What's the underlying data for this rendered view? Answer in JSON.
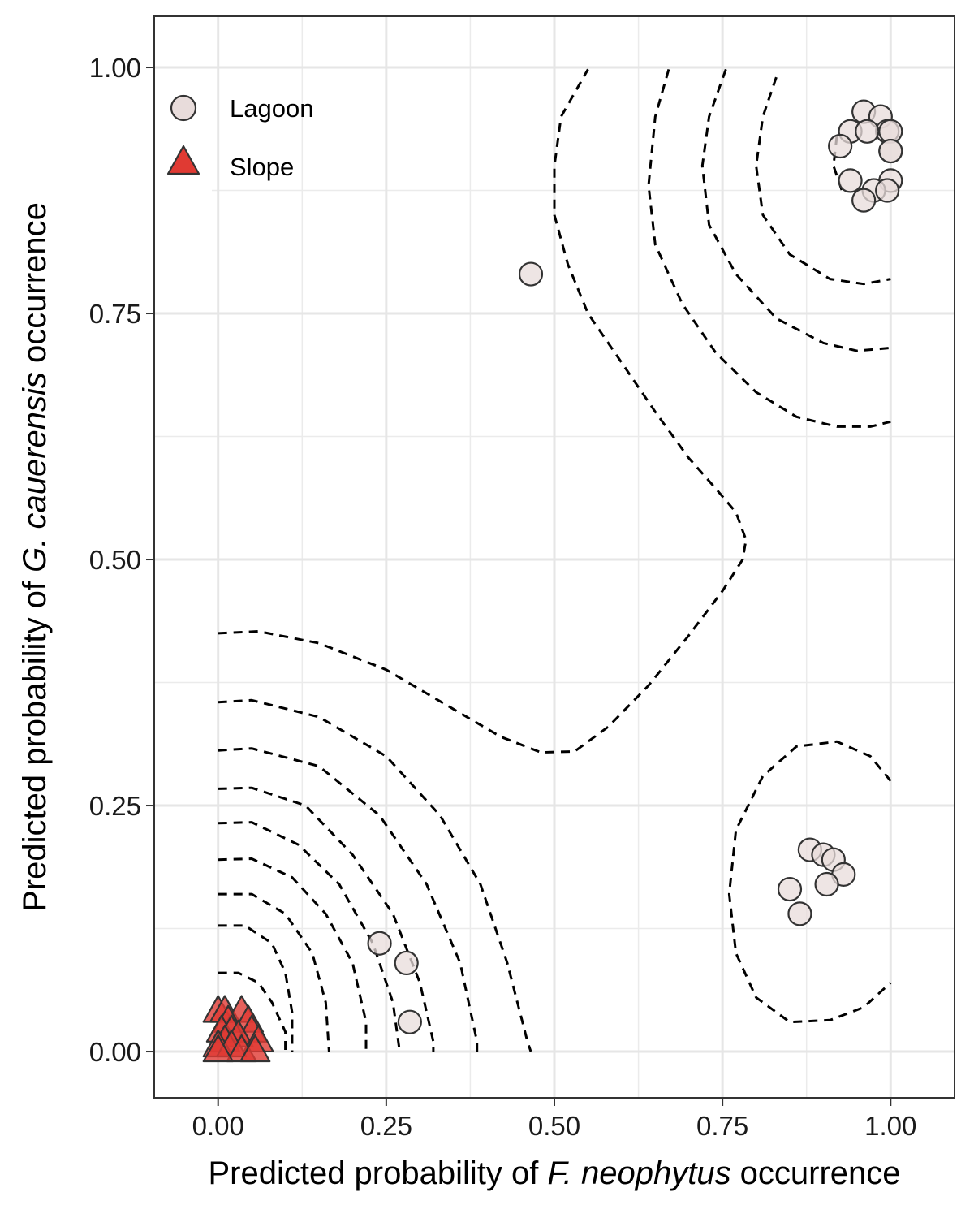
{
  "chart_data": {
    "type": "scatter",
    "xlabel": {
      "prefix": "Predicted probability of ",
      "italic": "F. neophytus",
      "suffix": " occurrence"
    },
    "ylabel": {
      "prefix": "Predicted probability of ",
      "italic": "G. cauerensis",
      "suffix": " occurrence"
    },
    "xlim": [
      -0.095,
      1.095
    ],
    "ylim": [
      -0.047,
      1.052
    ],
    "x_ticks": [
      0.0,
      0.25,
      0.5,
      0.75,
      1.0
    ],
    "x_tick_labels": [
      "0.00",
      "0.25",
      "0.50",
      "0.75",
      "1.00"
    ],
    "y_ticks": [
      0.0,
      0.25,
      0.5,
      0.75,
      1.0
    ],
    "y_tick_labels": [
      "0.00",
      "0.25",
      "0.50",
      "0.75",
      "1.00"
    ],
    "x_minor": [
      0.125,
      0.375,
      0.625,
      0.875
    ],
    "y_minor": [
      0.125,
      0.375,
      0.625,
      0.875
    ],
    "grid": true,
    "legend": {
      "position": "top-left",
      "items": [
        {
          "label": "Lagoon",
          "shape": "circle",
          "fill": "#e8dcdb",
          "stroke": "#333333"
        },
        {
          "label": "Slope",
          "shape": "triangle",
          "fill": "#e03a33",
          "stroke": "#333333"
        }
      ]
    },
    "series": [
      {
        "name": "Lagoon",
        "shape": "circle",
        "color": "#e8dcdb",
        "points": [
          [
            0.465,
            0.79
          ],
          [
            0.24,
            0.11
          ],
          [
            0.28,
            0.09
          ],
          [
            0.285,
            0.03
          ],
          [
            0.96,
            0.955
          ],
          [
            0.985,
            0.95
          ],
          [
            0.995,
            0.935
          ],
          [
            0.94,
            0.935
          ],
          [
            0.965,
            0.935
          ],
          [
            1.0,
            0.935
          ],
          [
            0.925,
            0.92
          ],
          [
            1.0,
            0.915
          ],
          [
            1.0,
            0.915
          ],
          [
            0.94,
            0.885
          ],
          [
            1.0,
            0.885
          ],
          [
            0.975,
            0.875
          ],
          [
            0.995,
            0.875
          ],
          [
            0.96,
            0.865
          ],
          [
            0.88,
            0.205
          ],
          [
            0.9,
            0.2
          ],
          [
            0.915,
            0.195
          ],
          [
            0.93,
            0.18
          ],
          [
            0.905,
            0.17
          ],
          [
            0.85,
            0.165
          ],
          [
            0.865,
            0.14
          ]
        ]
      },
      {
        "name": "Slope",
        "shape": "triangle",
        "color": "#e03a33",
        "points": [
          [
            0.0,
            0.04
          ],
          [
            0.01,
            0.04
          ],
          [
            0.035,
            0.04
          ],
          [
            0.015,
            0.03
          ],
          [
            0.045,
            0.03
          ],
          [
            0.005,
            0.02
          ],
          [
            0.02,
            0.02
          ],
          [
            0.05,
            0.02
          ],
          [
            0.03,
            0.015
          ],
          [
            0.01,
            0.01
          ],
          [
            0.06,
            0.01
          ],
          [
            0.0,
            0.005
          ],
          [
            0.02,
            0.005
          ],
          [
            0.035,
            0.0
          ],
          [
            0.055,
            0.0
          ],
          [
            0.0,
            0.0
          ]
        ]
      }
    ],
    "density_contours": [
      [
        [
          0.0,
          0.425
        ],
        [
          0.06,
          0.427
        ],
        [
          0.15,
          0.415
        ],
        [
          0.25,
          0.388
        ],
        [
          0.35,
          0.348
        ],
        [
          0.42,
          0.32
        ],
        [
          0.48,
          0.304
        ],
        [
          0.53,
          0.305
        ],
        [
          0.58,
          0.33
        ],
        [
          0.64,
          0.372
        ],
        [
          0.7,
          0.423
        ],
        [
          0.75,
          0.468
        ],
        [
          0.78,
          0.5
        ],
        [
          0.785,
          0.52
        ],
        [
          0.77,
          0.548
        ],
        [
          0.74,
          0.572
        ],
        [
          0.7,
          0.603
        ],
        [
          0.65,
          0.65
        ],
        [
          0.6,
          0.7
        ],
        [
          0.55,
          0.75
        ],
        [
          0.52,
          0.8
        ],
        [
          0.5,
          0.85
        ],
        [
          0.5,
          0.9
        ],
        [
          0.51,
          0.95
        ],
        [
          0.55,
          0.998
        ]
      ],
      [
        [
          0.0,
          0.355
        ],
        [
          0.05,
          0.357
        ],
        [
          0.15,
          0.34
        ],
        [
          0.25,
          0.3
        ],
        [
          0.33,
          0.24
        ],
        [
          0.39,
          0.17
        ],
        [
          0.43,
          0.09
        ],
        [
          0.46,
          0.01
        ],
        [
          0.465,
          0.0
        ]
      ],
      [
        [
          0.0,
          0.306
        ],
        [
          0.05,
          0.308
        ],
        [
          0.15,
          0.29
        ],
        [
          0.24,
          0.24
        ],
        [
          0.31,
          0.17
        ],
        [
          0.36,
          0.09
        ],
        [
          0.385,
          0.01
        ],
        [
          0.385,
          0.0
        ]
      ],
      [
        [
          0.0,
          0.267
        ],
        [
          0.05,
          0.268
        ],
        [
          0.13,
          0.25
        ],
        [
          0.2,
          0.2
        ],
        [
          0.26,
          0.14
        ],
        [
          0.3,
          0.07
        ],
        [
          0.32,
          0.01
        ],
        [
          0.32,
          0.0
        ]
      ],
      [
        [
          0.0,
          0.232
        ],
        [
          0.05,
          0.233
        ],
        [
          0.12,
          0.21
        ],
        [
          0.18,
          0.17
        ],
        [
          0.23,
          0.11
        ],
        [
          0.26,
          0.05
        ],
        [
          0.27,
          0.0
        ]
      ],
      [
        [
          0.0,
          0.195
        ],
        [
          0.05,
          0.196
        ],
        [
          0.11,
          0.177
        ],
        [
          0.16,
          0.14
        ],
        [
          0.2,
          0.09
        ],
        [
          0.22,
          0.03
        ],
        [
          0.22,
          0.0
        ]
      ],
      [
        [
          0.0,
          0.16
        ],
        [
          0.05,
          0.16
        ],
        [
          0.1,
          0.14
        ],
        [
          0.14,
          0.1
        ],
        [
          0.16,
          0.05
        ],
        [
          0.165,
          0.0
        ]
      ],
      [
        [
          0.0,
          0.128
        ],
        [
          0.04,
          0.128
        ],
        [
          0.08,
          0.11
        ],
        [
          0.1,
          0.08
        ],
        [
          0.11,
          0.04
        ],
        [
          0.11,
          0.0
        ]
      ],
      [
        [
          0.0,
          0.08
        ],
        [
          0.03,
          0.08
        ],
        [
          0.06,
          0.07
        ],
        [
          0.08,
          0.05
        ],
        [
          0.1,
          0.02
        ],
        [
          0.1,
          0.0
        ]
      ],
      [
        [
          1.0,
          0.275
        ],
        [
          0.97,
          0.3
        ],
        [
          0.92,
          0.315
        ],
        [
          0.86,
          0.31
        ],
        [
          0.81,
          0.28
        ],
        [
          0.77,
          0.225
        ],
        [
          0.76,
          0.16
        ],
        [
          0.77,
          0.1
        ],
        [
          0.8,
          0.055
        ],
        [
          0.85,
          0.03
        ],
        [
          0.91,
          0.032
        ],
        [
          0.96,
          0.045
        ],
        [
          1.0,
          0.07
        ]
      ],
      [
        [
          0.67,
          0.998
        ],
        [
          0.65,
          0.95
        ],
        [
          0.64,
          0.88
        ],
        [
          0.65,
          0.82
        ],
        [
          0.69,
          0.76
        ],
        [
          0.74,
          0.71
        ],
        [
          0.8,
          0.67
        ],
        [
          0.86,
          0.645
        ],
        [
          0.92,
          0.635
        ],
        [
          0.97,
          0.635
        ],
        [
          1.0,
          0.64
        ]
      ],
      [
        [
          0.755,
          0.998
        ],
        [
          0.73,
          0.95
        ],
        [
          0.72,
          0.9
        ],
        [
          0.73,
          0.84
        ],
        [
          0.77,
          0.79
        ],
        [
          0.83,
          0.745
        ],
        [
          0.9,
          0.72
        ],
        [
          0.95,
          0.712
        ],
        [
          1.0,
          0.715
        ]
      ],
      [
        [
          0.83,
          0.99
        ],
        [
          0.81,
          0.95
        ],
        [
          0.8,
          0.9
        ],
        [
          0.81,
          0.85
        ],
        [
          0.85,
          0.81
        ],
        [
          0.91,
          0.785
        ],
        [
          0.96,
          0.78
        ],
        [
          1.0,
          0.785
        ]
      ],
      [
        [
          0.92,
          0.93
        ],
        [
          0.915,
          0.9
        ],
        [
          0.93,
          0.87
        ]
      ]
    ]
  }
}
